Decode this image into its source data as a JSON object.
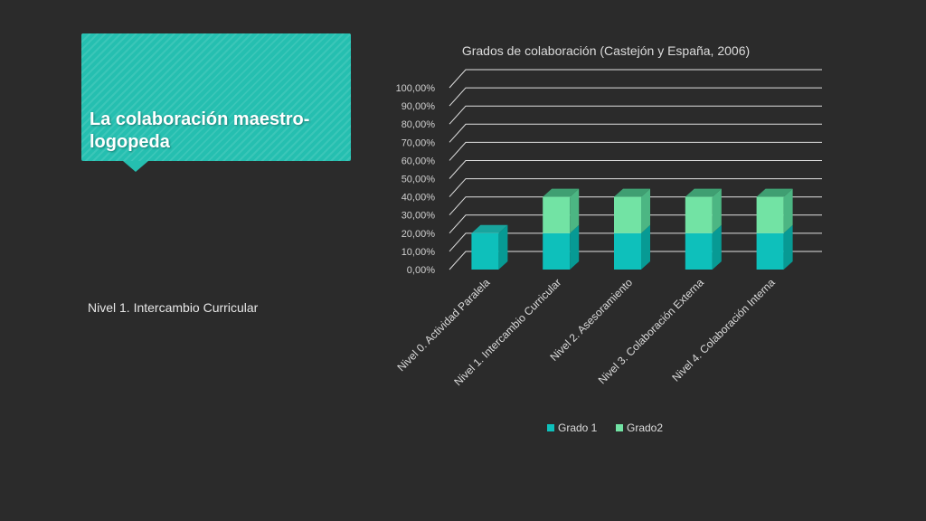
{
  "slide": {
    "title": "La colaboración maestro-logopeda",
    "body": "Nivel 1. Intercambio Curricular"
  },
  "colors": {
    "background": "#2b2b2b",
    "title_card": "#25bfb0",
    "series1_front": "#0ec0bb",
    "series1_side": "#079a94",
    "series1_top": "#18a49d",
    "series2_front": "#72e3a4",
    "series2_side": "#4cb683",
    "series2_top": "#3f9f72"
  },
  "chart_data": {
    "type": "bar",
    "stacked": true,
    "three_d": true,
    "title": "Grados de colaboración (Castejón y España, 2006)",
    "categories": [
      "Nivel 0. Actividad Paralela",
      "Nivel 1. Intercambio Curricular",
      "Nivel 2. Asesoramiento",
      "Nivel 3. Colaboración Externa",
      "Nivel 4. Colaboración Interna"
    ],
    "series": [
      {
        "name": "Grado 1",
        "values": [
          0.2,
          0.2,
          0.2,
          0.2,
          0.2
        ]
      },
      {
        "name": "Grado2",
        "values": [
          0.0,
          0.2,
          0.2,
          0.2,
          0.2
        ]
      }
    ],
    "ylim": [
      0,
      1.0
    ],
    "yticks": [
      "0,00%",
      "10,00%",
      "20,00%",
      "30,00%",
      "40,00%",
      "50,00%",
      "60,00%",
      "70,00%",
      "80,00%",
      "90,00%",
      "100,00%"
    ],
    "grid": true,
    "legend": "bottom"
  }
}
